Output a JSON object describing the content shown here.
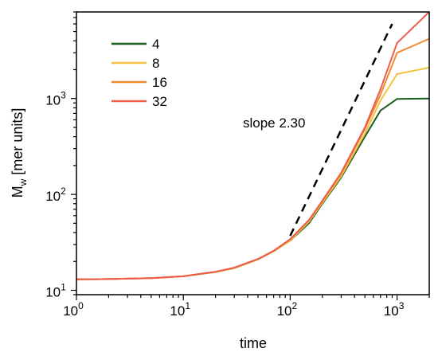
{
  "chart_data": {
    "type": "line",
    "title": "",
    "xlabel": "time",
    "ylabel_main": "M",
    "ylabel_sub": "w",
    "ylabel_rest": " [mer units]",
    "xscale": "log",
    "yscale": "log",
    "xlim": [
      1,
      2000
    ],
    "ylim": [
      9,
      8000
    ],
    "x_ticks": [
      {
        "value": 1,
        "base": "10",
        "exp": "0"
      },
      {
        "value": 10,
        "base": "10",
        "exp": "1"
      },
      {
        "value": 100,
        "base": "10",
        "exp": "2"
      },
      {
        "value": 1000,
        "base": "10",
        "exp": "3"
      }
    ],
    "y_ticks": [
      {
        "value": 10,
        "base": "10",
        "exp": "1"
      },
      {
        "value": 100,
        "base": "10",
        "exp": "2"
      },
      {
        "value": 1000,
        "base": "10",
        "exp": "3"
      }
    ],
    "grid": false,
    "legend": "top-left",
    "series": [
      {
        "name": "4",
        "color": "#1a5e20",
        "x": [
          1,
          2,
          5,
          10,
          20,
          30,
          50,
          70,
          100,
          150,
          200,
          300,
          500,
          700,
          1000,
          2000
        ],
        "y": [
          13,
          13.1,
          13.4,
          14,
          15.5,
          17,
          21,
          25.5,
          33,
          50,
          80,
          150,
          400,
          750,
          990,
          1000
        ]
      },
      {
        "name": "8",
        "color": "#f5c242",
        "x": [
          1,
          2,
          5,
          10,
          20,
          30,
          50,
          70,
          100,
          150,
          200,
          300,
          500,
          700,
          1000,
          2000
        ],
        "y": [
          13,
          13.1,
          13.4,
          14,
          15.5,
          17,
          21,
          25.5,
          33,
          52,
          82,
          155,
          430,
          950,
          1800,
          2100
        ]
      },
      {
        "name": "16",
        "color": "#f08c2e",
        "x": [
          1,
          2,
          5,
          10,
          20,
          30,
          50,
          70,
          100,
          150,
          200,
          300,
          500,
          700,
          1000,
          2000
        ],
        "y": [
          13,
          13.1,
          13.4,
          14,
          15.6,
          17.2,
          21.2,
          25.8,
          34,
          54,
          85,
          165,
          480,
          1100,
          3000,
          4200
        ]
      },
      {
        "name": "32",
        "color": "#ee5b4b",
        "x": [
          1,
          2,
          5,
          10,
          20,
          30,
          50,
          70,
          100,
          150,
          200,
          300,
          500,
          700,
          1000,
          2000
        ],
        "y": [
          13,
          13.1,
          13.4,
          14,
          15.6,
          17.2,
          21.2,
          25.8,
          34,
          54,
          86,
          168,
          500,
          1250,
          3800,
          8000
        ]
      }
    ],
    "annotation": {
      "text": "slope 2.30",
      "line": {
        "x": [
          100,
          900
        ],
        "y": [
          37,
          6000
        ],
        "color": "#000000",
        "dash": true
      }
    }
  }
}
